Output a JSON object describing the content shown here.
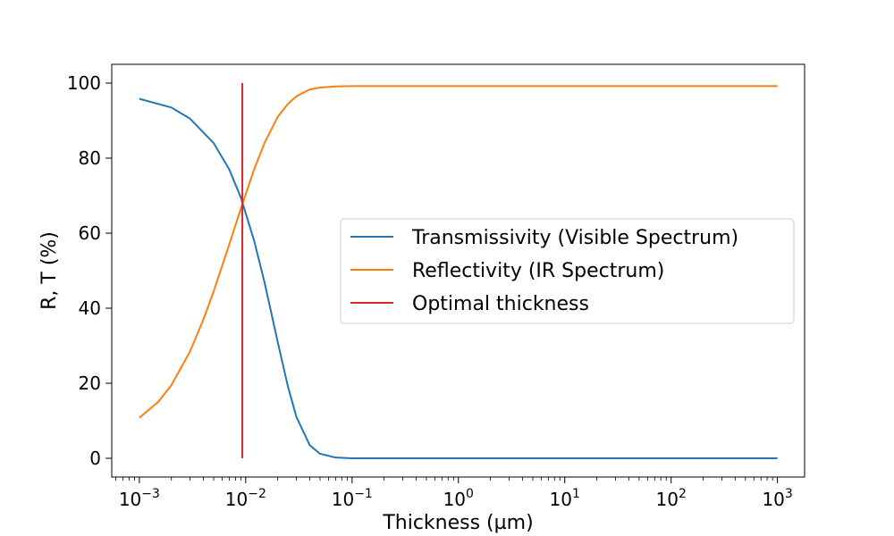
{
  "chart_data": {
    "type": "line",
    "xlabel": "Thickness (µm)",
    "ylabel": "R, T (%)",
    "xscale": "log",
    "xlim": [
      0.00055,
      1800
    ],
    "ylim": [
      -5,
      105
    ],
    "grid": false,
    "legend_position": "center-right",
    "x_ticks": [
      {
        "value": 0.001,
        "base": "10",
        "exp": "−3"
      },
      {
        "value": 0.01,
        "base": "10",
        "exp": "−2"
      },
      {
        "value": 0.1,
        "base": "10",
        "exp": "−1"
      },
      {
        "value": 1,
        "base": "10",
        "exp": "0"
      },
      {
        "value": 10,
        "base": "10",
        "exp": "1"
      },
      {
        "value": 100,
        "base": "10",
        "exp": "2"
      },
      {
        "value": 1000,
        "base": "10",
        "exp": "3"
      }
    ],
    "y_ticks": [
      {
        "value": 0,
        "label": "0"
      },
      {
        "value": 20,
        "label": "20"
      },
      {
        "value": 40,
        "label": "40"
      },
      {
        "value": 60,
        "label": "60"
      },
      {
        "value": 80,
        "label": "80"
      },
      {
        "value": 100,
        "label": "100"
      }
    ],
    "series": [
      {
        "name": "Transmissivity (Visible Spectrum)",
        "color": "#1f77b4",
        "x": [
          0.001,
          0.002,
          0.003,
          0.005,
          0.007,
          0.009,
          0.012,
          0.015,
          0.02,
          0.025,
          0.03,
          0.04,
          0.05,
          0.07,
          0.1,
          0.2,
          1,
          10,
          100,
          1000
        ],
        "y": [
          95.8,
          93.5,
          90.5,
          84.0,
          77.0,
          69.5,
          58.0,
          47.0,
          31.0,
          19.0,
          11.0,
          3.5,
          1.2,
          0.2,
          0.0,
          0.0,
          0.0,
          0.0,
          0.0,
          0.0
        ]
      },
      {
        "name": "Reflectivity (IR Spectrum)",
        "color": "#ff7f0e",
        "x": [
          0.001,
          0.0015,
          0.002,
          0.003,
          0.004,
          0.005,
          0.007,
          0.009,
          0.012,
          0.015,
          0.02,
          0.025,
          0.03,
          0.04,
          0.05,
          0.07,
          0.1,
          1,
          10,
          100,
          1000
        ],
        "y": [
          10.8,
          15.0,
          19.5,
          28.5,
          37.0,
          44.5,
          57.0,
          66.5,
          77.0,
          84.0,
          91.0,
          94.5,
          96.5,
          98.3,
          98.8,
          99.1,
          99.2,
          99.2,
          99.2,
          99.2,
          99.2
        ]
      },
      {
        "name": "Optimal thickness",
        "color": "#d62728",
        "x": [
          0.0093,
          0.0093
        ],
        "y": [
          0,
          100
        ]
      }
    ]
  }
}
